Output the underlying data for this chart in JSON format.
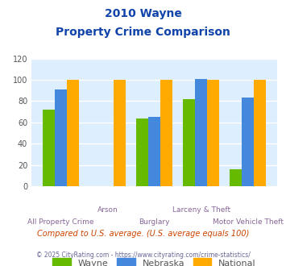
{
  "title_line1": "2010 Wayne",
  "title_line2": "Property Crime Comparison",
  "categories": [
    "All Property Crime",
    "Arson",
    "Burglary",
    "Larceny & Theft",
    "Motor Vehicle Theft"
  ],
  "category_labels_row1": [
    "",
    "Arson",
    "",
    "Larceny & Theft",
    ""
  ],
  "category_labels_row2": [
    "All Property Crime",
    "",
    "Burglary",
    "",
    "Motor Vehicle Theft"
  ],
  "wayne": [
    72,
    0,
    64,
    82,
    16
  ],
  "nebraska": [
    91,
    0,
    65,
    101,
    83
  ],
  "national": [
    100,
    100,
    100,
    100,
    100
  ],
  "color_wayne": "#66bb00",
  "color_nebraska": "#4488dd",
  "color_national": "#ffaa00",
  "ylim": [
    0,
    120
  ],
  "yticks": [
    0,
    20,
    40,
    60,
    80,
    100,
    120
  ],
  "bg_color": "#ddeeff",
  "title_color": "#1144aa",
  "xlabel_color": "#886699",
  "legend_labels": [
    "Wayne",
    "Nebraska",
    "National"
  ],
  "footnote1": "Compared to U.S. average. (U.S. average equals 100)",
  "footnote2": "© 2025 CityRating.com - https://www.cityrating.com/crime-statistics/",
  "footnote1_color": "#cc4400",
  "footnote2_color": "#666699"
}
